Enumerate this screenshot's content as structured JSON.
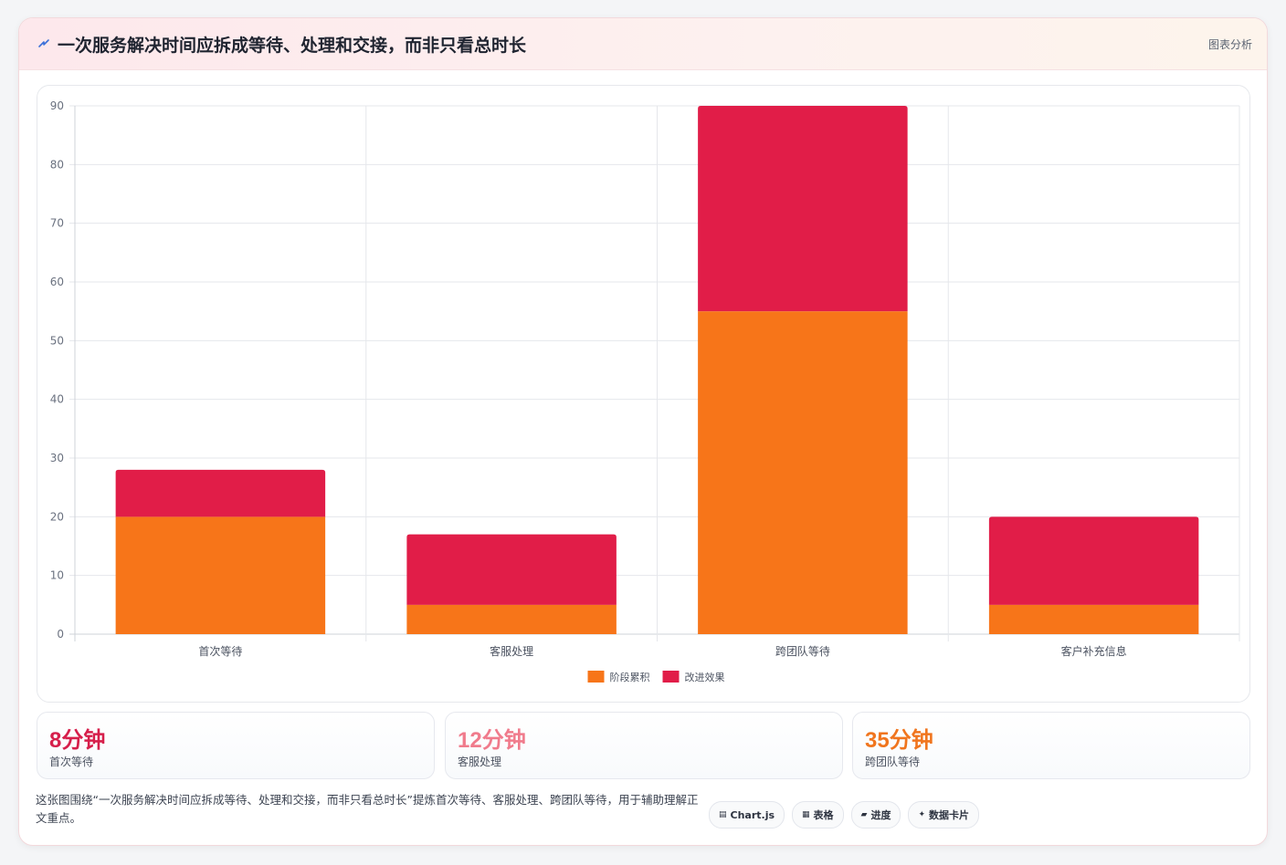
{
  "header": {
    "title": "一次服务解决时间应拆成等待、处理和交接，而非只看总时长",
    "tag": "图表分析"
  },
  "chart_data": {
    "type": "bar",
    "stacked": true,
    "categories": [
      "首次等待",
      "客服处理",
      "跨团队等待",
      "客户补充信息"
    ],
    "series": [
      {
        "name": "阶段累积",
        "values": [
          20,
          5,
          55,
          5
        ],
        "color": "#f77519"
      },
      {
        "name": "改进效果",
        "values": [
          8,
          12,
          35,
          15
        ],
        "color": "#e11d48"
      }
    ],
    "ylim": [
      0,
      90
    ],
    "yticks": [
      0,
      10,
      20,
      30,
      40,
      50,
      60,
      70,
      80,
      90
    ],
    "grid": true,
    "legend_position": "bottom"
  },
  "stats": [
    {
      "value": "8分钟",
      "label": "首次等待",
      "color": "#d61f4b"
    },
    {
      "value": "12分钟",
      "label": "客服处理",
      "color": "#f07b8c"
    },
    {
      "value": "35分钟",
      "label": "跨团队等待",
      "color": "#f0751e"
    }
  ],
  "footer": {
    "description": "这张图围绕“一次服务解决时间应拆成等待、处理和交接，而非只看总时长”提炼首次等待、客服处理、跨团队等待，用于辅助理解正文重点。",
    "chips": [
      {
        "icon": "▤",
        "label": "Chart.js",
        "icon_name": "chart-icon"
      },
      {
        "icon": "▦",
        "label": "表格",
        "icon_name": "table-icon"
      },
      {
        "icon": "▰",
        "label": "进度",
        "icon_name": "progress-icon"
      },
      {
        "icon": "✦",
        "label": "数据卡片",
        "icon_name": "sparkle-icon"
      }
    ]
  }
}
